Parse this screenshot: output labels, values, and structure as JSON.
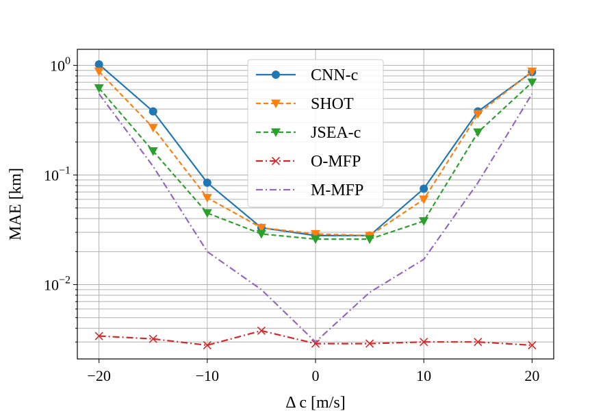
{
  "chart_data": {
    "type": "line",
    "title": "",
    "xlabel": "Δ c [m/s]",
    "ylabel": "MAE [km]",
    "x": [
      -20,
      -15,
      -10,
      -5,
      0,
      5,
      10,
      15,
      20
    ],
    "xlim": [
      -22,
      22
    ],
    "ylim": [
      0.0021,
      1.4
    ],
    "yscale": "log",
    "grid": true,
    "legend_position": "top-center",
    "x_ticks": [
      -20,
      -10,
      0,
      10,
      20
    ],
    "x_tick_labels": [
      "−20",
      "−10",
      "0",
      "10",
      "20"
    ],
    "y_ticks": [
      {
        "value": 0.01,
        "base": "10",
        "exp": "−2"
      },
      {
        "value": 0.1,
        "base": "10",
        "exp": "−1"
      },
      {
        "value": 1,
        "base": "10",
        "exp": "0"
      }
    ],
    "series": [
      {
        "name": "CNN-c",
        "color": "#1f77b4",
        "marker": "circle",
        "dash": "solid",
        "values": [
          1.02,
          0.38,
          0.085,
          0.033,
          0.028,
          0.028,
          0.075,
          0.38,
          0.87
        ]
      },
      {
        "name": "SHOT",
        "color": "#ff7f0e",
        "marker": "triangle-down",
        "dash": "dashed",
        "values": [
          0.88,
          0.27,
          0.062,
          0.033,
          0.029,
          0.028,
          0.06,
          0.36,
          0.88
        ]
      },
      {
        "name": "JSEA-c",
        "color": "#2ca02c",
        "marker": "triangle-down",
        "dash": "dashed",
        "values": [
          0.62,
          0.165,
          0.045,
          0.029,
          0.026,
          0.026,
          0.038,
          0.245,
          0.7
        ]
      },
      {
        "name": "O-MFP",
        "color": "#d62728",
        "marker": "x",
        "dash": "dashdot",
        "values": [
          0.0034,
          0.0032,
          0.0028,
          0.0038,
          0.0029,
          0.0029,
          0.003,
          0.003,
          0.0028
        ]
      },
      {
        "name": "M-MFP",
        "color": "#9467bd",
        "marker": "none",
        "dash": "dashdot",
        "values": [
          0.55,
          0.12,
          0.02,
          0.009,
          0.003,
          0.0085,
          0.017,
          0.085,
          0.55
        ]
      }
    ]
  }
}
